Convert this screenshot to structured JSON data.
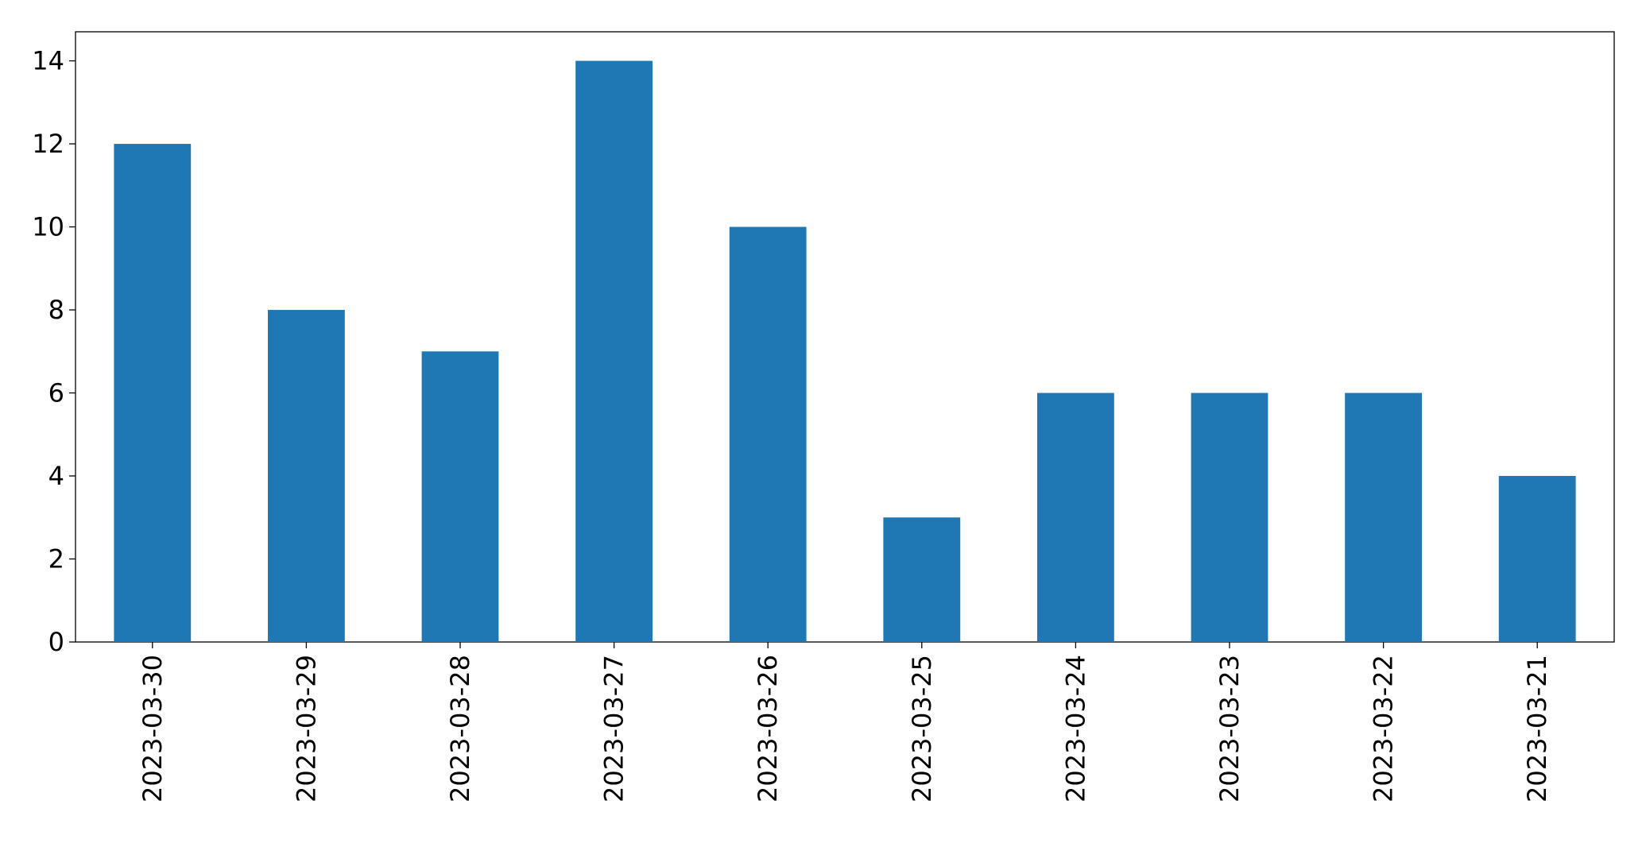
{
  "chart_data": {
    "type": "bar",
    "categories": [
      "2023-03-30",
      "2023-03-29",
      "2023-03-28",
      "2023-03-27",
      "2023-03-26",
      "2023-03-25",
      "2023-03-24",
      "2023-03-23",
      "2023-03-22",
      "2023-03-21"
    ],
    "values": [
      12,
      8,
      7,
      14,
      10,
      3,
      6,
      6,
      6,
      4
    ],
    "color": "#1f77b4",
    "ylim": [
      0,
      14.7
    ],
    "yticks": [
      0,
      2,
      4,
      6,
      8,
      10,
      12,
      14
    ],
    "grid": false
  }
}
